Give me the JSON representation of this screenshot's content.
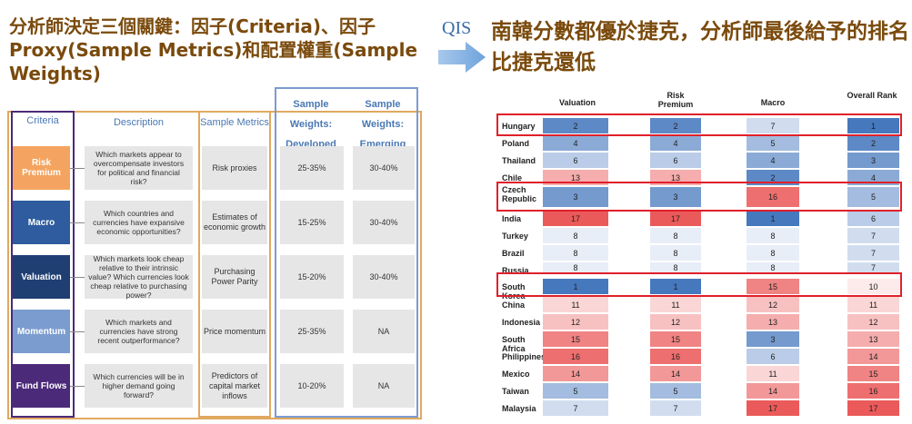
{
  "left_title": "分析師決定三個關鍵：因子(Criteria)、因子Proxy(Sample Metrics)和配置權重(Sample Weights)",
  "right_title": "南韓分數都優於捷克，分析師最後給予的排名比捷克還低",
  "arrow_label": "QIS",
  "left_table": {
    "headers": {
      "criteria": "Criteria",
      "description": "Description",
      "metrics": "Sample Metrics",
      "dev": "Sample Weights: Developed Model",
      "emg": "Sample Weights: Emerging Model"
    },
    "rows": [
      {
        "criteria": "Risk Premium",
        "color": "#f4a460",
        "description": "Which markets appear to overcompensate investors for political and financial risk?",
        "metric": "Risk proxies",
        "dev": "25-35%",
        "emg": "30-40%"
      },
      {
        "criteria": "Macro",
        "color": "#2e5c9e",
        "description": "Which countries and currencies have expansive economic opportunities?",
        "metric": "Estimates of economic growth",
        "dev": "15-25%",
        "emg": "30-40%"
      },
      {
        "criteria": "Valuation",
        "color": "#1f3f73",
        "description": "Which markets look cheap relative to their intrinsic value? Which currencies look cheap relative to purchasing power?",
        "metric": "Purchasing Power Parity",
        "dev": "15-20%",
        "emg": "30-40%"
      },
      {
        "criteria": "Momentum",
        "color": "#7b9ccf",
        "description": "Which markets and currencies have strong recent outperformance?",
        "metric": "Price momentum",
        "dev": "25-35%",
        "emg": "NA"
      },
      {
        "criteria": "Fund Flows",
        "color": "#4b2a7a",
        "description": "Which currencies will be in higher demand going forward?",
        "metric": "Predictors of capital market inflows",
        "dev": "10-20%",
        "emg": "NA"
      }
    ]
  },
  "right_table": {
    "headers": {
      "valuation": "Valuation",
      "risk": "Risk Premium",
      "macro": "Macro",
      "overall": "Overall Rank"
    },
    "rows": [
      {
        "country": "Hungary",
        "v": "2",
        "r": "2",
        "m": "7",
        "o": "1"
      },
      {
        "country": "Poland",
        "v": "4",
        "r": "4",
        "m": "5",
        "o": "2"
      },
      {
        "country": "Thailand",
        "v": "6",
        "r": "6",
        "m": "4",
        "o": "3"
      },
      {
        "country": "Chile",
        "v": "13",
        "r": "13",
        "m": "2",
        "o": "4"
      },
      {
        "country": "Czech Republic",
        "v": "3",
        "r": "3",
        "m": "16",
        "o": "5"
      },
      {
        "country": "India",
        "v": "17",
        "r": "17",
        "m": "1",
        "o": "6"
      },
      {
        "country": "Turkey",
        "v": "8",
        "r": "8",
        "m": "8",
        "o": "7"
      },
      {
        "country": "Brazil",
        "v": "8",
        "r": "8",
        "m": "8",
        "o": "7"
      },
      {
        "country": "Russia",
        "v": "8",
        "r": "8",
        "m": "8",
        "o": "7"
      },
      {
        "country": "South Korea",
        "v": "1",
        "r": "1",
        "m": "15",
        "o": "10"
      },
      {
        "country": "China",
        "v": "11",
        "r": "11",
        "m": "12",
        "o": "11"
      },
      {
        "country": "Indonesia",
        "v": "12",
        "r": "12",
        "m": "13",
        "o": "12"
      },
      {
        "country": "South Africa",
        "v": "15",
        "r": "15",
        "m": "3",
        "o": "13"
      },
      {
        "country": "Philippines",
        "v": "16",
        "r": "16",
        "m": "6",
        "o": "14"
      },
      {
        "country": "Mexico",
        "v": "14",
        "r": "14",
        "m": "11",
        "o": "15"
      },
      {
        "country": "Taiwan",
        "v": "5",
        "r": "5",
        "m": "14",
        "o": "16"
      },
      {
        "country": "Malaysia",
        "v": "7",
        "r": "7",
        "m": "17",
        "o": "17"
      }
    ]
  }
}
